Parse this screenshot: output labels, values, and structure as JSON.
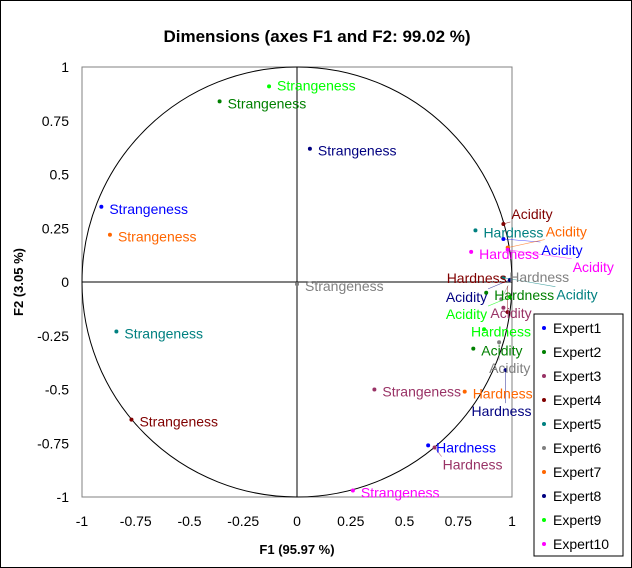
{
  "chart_data": {
    "type": "scatter",
    "title": "Dimensions (axes F1 and F2: 99.02 %)",
    "xlabel": "F1 (95.97 %)",
    "ylabel": "F2 (3.05 %)",
    "xlim": [
      -1,
      1
    ],
    "ylim": [
      -1,
      1
    ],
    "xticks": [
      "-1",
      "-0.75",
      "-0.5",
      "-0.25",
      "0",
      "0.25",
      "0.5",
      "0.75",
      "1"
    ],
    "yticks": [
      "1",
      "0.75",
      "0.5",
      "0.25",
      "0",
      "-0.25",
      "-0.5",
      "-0.75",
      "-1"
    ],
    "xtick_values": [
      -1,
      -0.75,
      -0.5,
      -0.25,
      0,
      0.25,
      0.5,
      0.75,
      1
    ],
    "ytick_values": [
      1,
      0.75,
      0.5,
      0.25,
      0,
      -0.25,
      -0.5,
      -0.75,
      -1
    ],
    "unit_circle": true,
    "grid": false,
    "legend_position": "bottom-right",
    "series": [
      {
        "name": "Expert1",
        "color": "#0000FF",
        "points": [
          {
            "label": "Strangeness",
            "x": -0.91,
            "y": 0.35
          },
          {
            "label": "Hardness",
            "x": 0.61,
            "y": -0.76
          },
          {
            "label": "Acidity",
            "x": 0.96,
            "y": 0.2
          }
        ]
      },
      {
        "name": "Expert2",
        "color": "#008000",
        "points": [
          {
            "label": "Strangeness",
            "x": -0.36,
            "y": 0.84
          },
          {
            "label": "Hardness",
            "x": 0.88,
            "y": -0.05
          },
          {
            "label": "Acidity",
            "x": 0.82,
            "y": -0.31
          }
        ]
      },
      {
        "name": "Expert3",
        "color": "#993366",
        "points": [
          {
            "label": "Strangeness",
            "x": 0.36,
            "y": -0.5
          },
          {
            "label": "Hardness",
            "x": 0.64,
            "y": -0.77
          },
          {
            "label": "Acidity",
            "x": 0.96,
            "y": -0.12
          }
        ]
      },
      {
        "name": "Expert4",
        "color": "#800000",
        "points": [
          {
            "label": "Strangeness",
            "x": -0.77,
            "y": -0.64
          },
          {
            "label": "Hardness",
            "x": 0.98,
            "y": -0.14
          },
          {
            "label": "Acidity",
            "x": 0.96,
            "y": 0.27
          }
        ]
      },
      {
        "name": "Expert5",
        "color": "#008080",
        "points": [
          {
            "label": "Strangeness",
            "x": -0.84,
            "y": -0.23
          },
          {
            "label": "Hardness",
            "x": 0.83,
            "y": 0.24
          },
          {
            "label": "Acidity",
            "x": 0.96,
            "y": 0.02
          }
        ]
      },
      {
        "name": "Expert6",
        "color": "#808080",
        "points": [
          {
            "label": "Strangeness",
            "x": 0.0,
            "y": -0.01
          },
          {
            "label": "Hardness",
            "x": 0.95,
            "y": -0.08
          },
          {
            "label": "Acidity",
            "x": 0.94,
            "y": -0.28
          }
        ]
      },
      {
        "name": "Expert7",
        "color": "#FF6600",
        "points": [
          {
            "label": "Strangeness",
            "x": -0.87,
            "y": 0.22
          },
          {
            "label": "Hardness",
            "x": 0.78,
            "y": -0.51
          },
          {
            "label": "Acidity",
            "x": 0.98,
            "y": 0.16
          }
        ]
      },
      {
        "name": "Expert8",
        "color": "#000080",
        "points": [
          {
            "label": "Strangeness",
            "x": 0.06,
            "y": 0.62
          },
          {
            "label": "Hardness",
            "x": 0.97,
            "y": -0.41
          },
          {
            "label": "Acidity",
            "x": 0.99,
            "y": 0.01
          }
        ]
      },
      {
        "name": "Expert9",
        "color": "#00FF00",
        "points": [
          {
            "label": "Strangeness",
            "x": -0.13,
            "y": 0.91
          },
          {
            "label": "Hardness",
            "x": 0.87,
            "y": -0.22
          },
          {
            "label": "Acidity",
            "x": 0.99,
            "y": -0.07
          }
        ]
      },
      {
        "name": "Expert10",
        "color": "#FF00FF",
        "points": [
          {
            "label": "Strangeness",
            "x": 0.26,
            "y": -0.97
          },
          {
            "label": "Hardness",
            "x": 0.81,
            "y": 0.14
          },
          {
            "label": "Acidity",
            "x": 0.98,
            "y": 0.15
          }
        ]
      }
    ]
  }
}
